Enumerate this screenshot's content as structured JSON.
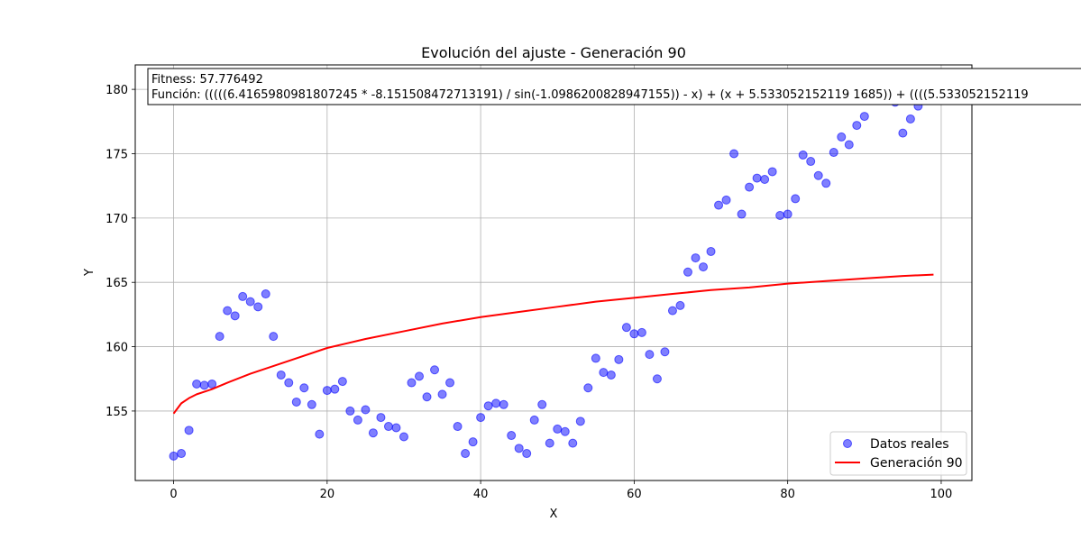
{
  "chart_data": {
    "type": "scatter",
    "title": "Evolución del ajuste - Generación 90",
    "xlabel": "X",
    "ylabel": "Y",
    "xlim": [
      -5,
      104
    ],
    "ylim": [
      149.6,
      181.9
    ],
    "xticks": [
      0,
      20,
      40,
      60,
      80,
      100
    ],
    "yticks": [
      155,
      160,
      165,
      170,
      175,
      180
    ],
    "grid": true,
    "legend_position": "lower-right",
    "annotation": {
      "fitness": "Fitness: 57.776492",
      "function": "Función: (((((6.4165980981807245 * -8.151508472713191) / sin(-1.0986200828947155)) - x) + (x + 5.533052152119 1685)) + ((((5.533052152119"
    },
    "series": [
      {
        "name": "Datos reales",
        "kind": "scatter",
        "color": "#0000ff",
        "x": [
          0,
          1,
          2,
          3,
          4,
          5,
          6,
          7,
          8,
          9,
          10,
          11,
          12,
          13,
          14,
          15,
          16,
          17,
          18,
          19,
          20,
          21,
          22,
          23,
          24,
          25,
          26,
          27,
          28,
          29,
          30,
          31,
          32,
          33,
          34,
          35,
          36,
          37,
          38,
          39,
          40,
          41,
          42,
          43,
          44,
          45,
          46,
          47,
          48,
          49,
          50,
          51,
          52,
          53,
          54,
          55,
          56,
          57,
          58,
          59,
          60,
          61,
          62,
          63,
          64,
          65,
          66,
          67,
          68,
          69,
          70,
          71,
          72,
          73,
          74,
          75,
          76,
          77,
          78,
          79,
          80,
          81,
          82,
          83,
          84,
          85,
          86,
          87,
          88,
          89,
          90,
          91,
          92,
          93,
          94,
          95,
          96,
          97,
          98,
          99
        ],
        "y": [
          151.5,
          151.7,
          153.5,
          157.1,
          157.0,
          157.1,
          160.8,
          162.8,
          162.4,
          163.9,
          163.5,
          163.1,
          164.1,
          160.8,
          157.8,
          157.2,
          155.7,
          156.8,
          155.5,
          153.2,
          156.6,
          156.7,
          157.3,
          155.0,
          154.3,
          155.1,
          153.3,
          154.5,
          153.8,
          153.7,
          153.0,
          157.2,
          157.7,
          156.1,
          158.2,
          156.3,
          157.2,
          153.8,
          151.7,
          152.6,
          154.5,
          155.4,
          155.6,
          155.5,
          153.1,
          152.1,
          151.7,
          154.3,
          155.5,
          152.5,
          153.6,
          153.4,
          152.5,
          154.2,
          156.8,
          159.1,
          158.0,
          157.8,
          159.0,
          161.5,
          161.0,
          161.1,
          159.4,
          157.5,
          159.6,
          162.8,
          163.2,
          165.8,
          166.9,
          166.2,
          167.4,
          171.0,
          171.4,
          175.0,
          170.3,
          172.4,
          173.1,
          173.0,
          173.6,
          170.2,
          170.3,
          171.5,
          174.9,
          174.4,
          173.3,
          172.7,
          175.1,
          176.3,
          175.7,
          177.2,
          177.9,
          180.4,
          179.5,
          179.3,
          179.0,
          176.6,
          177.7,
          178.7,
          179.2,
          179.2
        ]
      },
      {
        "name": "Generación 90",
        "kind": "line",
        "color": "#ff0000",
        "x": [
          0,
          1,
          2,
          3,
          4,
          5,
          7,
          10,
          15,
          20,
          25,
          30,
          35,
          40,
          45,
          50,
          55,
          60,
          65,
          70,
          75,
          80,
          85,
          90,
          95,
          99
        ],
        "y": [
          154.8,
          155.6,
          156.0,
          156.3,
          156.5,
          156.7,
          157.2,
          157.9,
          158.9,
          159.9,
          160.6,
          161.2,
          161.8,
          162.3,
          162.7,
          163.1,
          163.5,
          163.8,
          164.1,
          164.4,
          164.6,
          164.9,
          165.1,
          165.3,
          165.5,
          165.6
        ]
      }
    ]
  }
}
